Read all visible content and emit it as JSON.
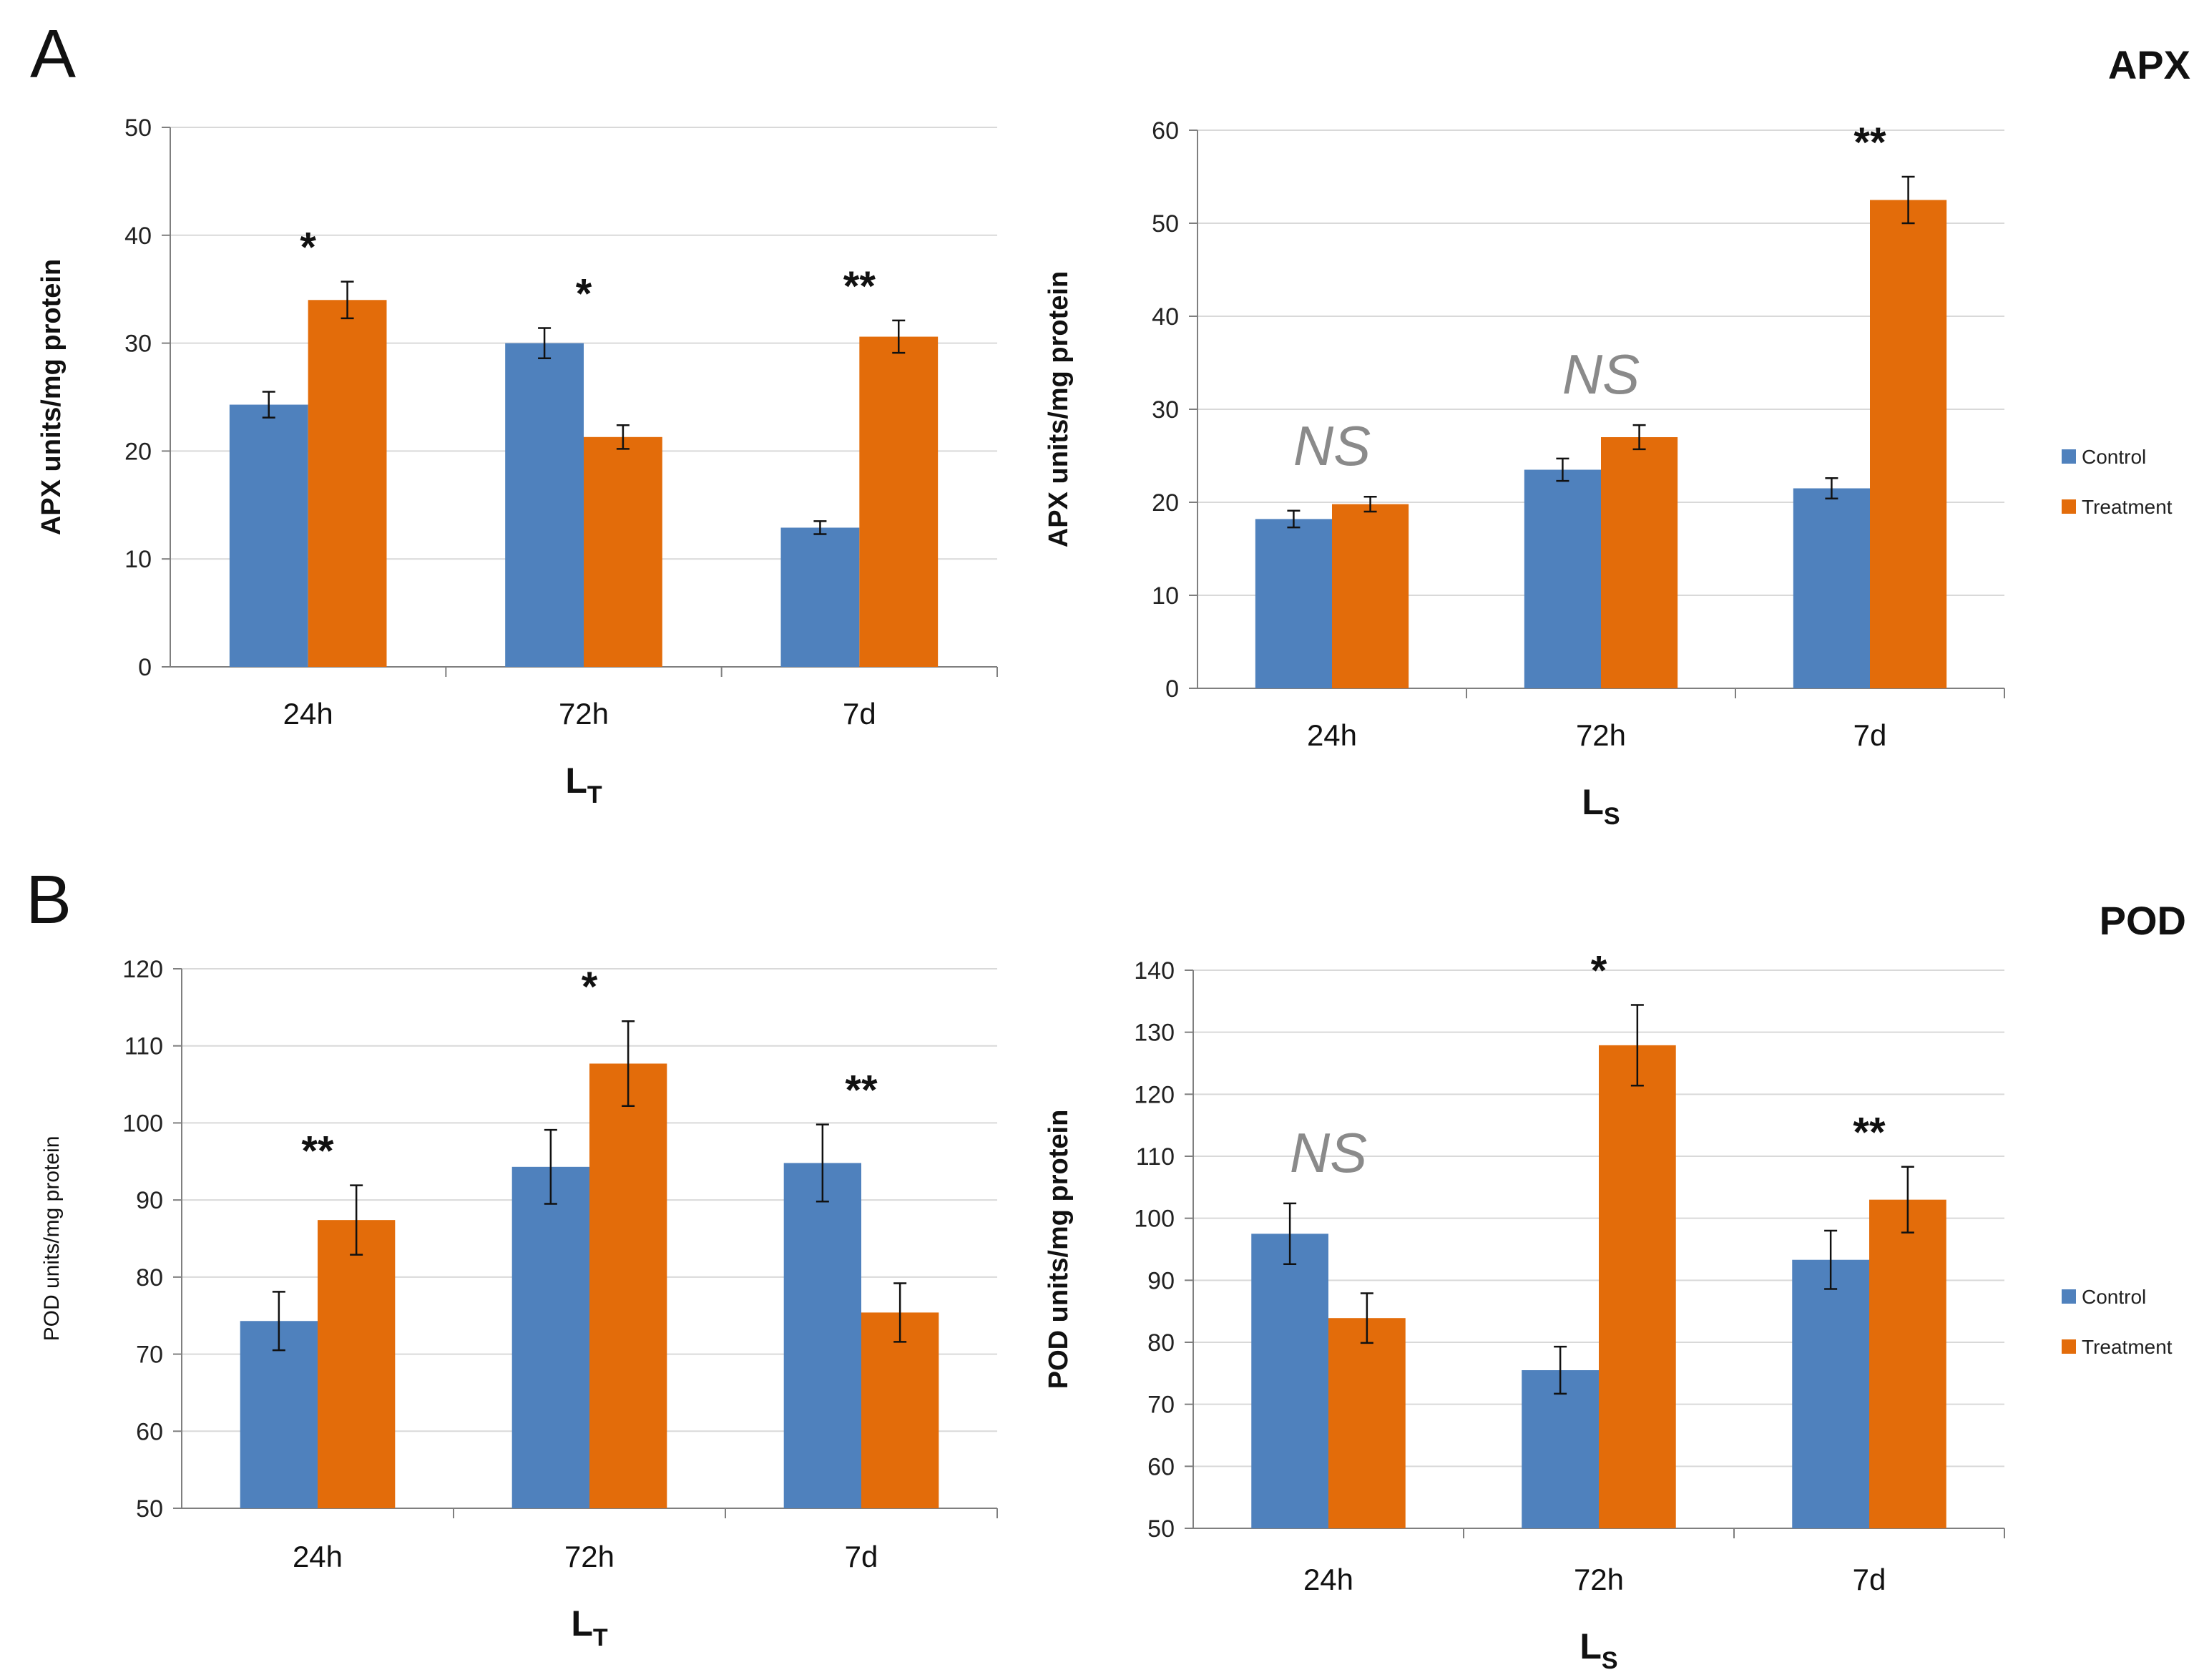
{
  "figure": {
    "panels": [
      {
        "letter": "A",
        "enzyme": "APX"
      },
      {
        "letter": "B",
        "enzyme": "POD"
      }
    ],
    "legend": [
      {
        "label": "Control",
        "color": "#4f81bd"
      },
      {
        "label": "Treatment",
        "color": "#e36c0a"
      }
    ]
  },
  "chart_data": [
    {
      "type": "bar",
      "title": "",
      "ylabel": "APX units/mg protein",
      "xlabel": "L",
      "xlabel_sub": "T",
      "ylim": [
        0,
        50
      ],
      "yticks": [
        0,
        10,
        20,
        30,
        40,
        50
      ],
      "grid": true,
      "categories": [
        "24h",
        "72h",
        "7d"
      ],
      "series": [
        {
          "name": "Control",
          "color": "#4f81bd",
          "values": [
            24.3,
            30.0,
            12.9
          ],
          "errors": [
            1.2,
            1.4,
            0.6
          ]
        },
        {
          "name": "Treatment",
          "color": "#e36c0a",
          "values": [
            34.0,
            21.3,
            30.6
          ],
          "errors": [
            1.7,
            1.1,
            1.5
          ]
        }
      ],
      "annotations": [
        "*",
        "*",
        "**"
      ]
    },
    {
      "type": "bar",
      "title": "",
      "ylabel": "APX units/mg protein",
      "xlabel": "L",
      "xlabel_sub": "S",
      "ylim": [
        0,
        60
      ],
      "yticks": [
        0,
        10,
        20,
        30,
        40,
        50,
        60
      ],
      "grid": true,
      "legend": "right",
      "categories": [
        "24h",
        "72h",
        "7d"
      ],
      "series": [
        {
          "name": "Control",
          "color": "#4f81bd",
          "values": [
            18.2,
            23.5,
            21.5
          ],
          "errors": [
            0.9,
            1.2,
            1.1
          ]
        },
        {
          "name": "Treatment",
          "color": "#e36c0a",
          "values": [
            19.8,
            27.0,
            52.5
          ],
          "errors": [
            0.8,
            1.3,
            2.5
          ]
        }
      ],
      "annotations": [
        "NS",
        "NS",
        "**"
      ]
    },
    {
      "type": "bar",
      "title": "",
      "ylabel": "POD units/mg protein",
      "xlabel": "L",
      "xlabel_sub": "T",
      "ylim": [
        50,
        120
      ],
      "yticks": [
        50,
        60,
        70,
        80,
        90,
        100,
        110,
        120
      ],
      "grid": true,
      "categories": [
        "24h",
        "72h",
        "7d"
      ],
      "series": [
        {
          "name": "Control",
          "color": "#4f81bd",
          "values": [
            74.3,
            94.3,
            94.8
          ],
          "errors": [
            3.8,
            4.8,
            5.0
          ]
        },
        {
          "name": "Treatment",
          "color": "#e36c0a",
          "values": [
            87.4,
            107.7,
            75.4
          ],
          "errors": [
            4.5,
            5.5,
            3.8
          ]
        }
      ],
      "annotations": [
        "**",
        "*",
        "**"
      ]
    },
    {
      "type": "bar",
      "title": "",
      "ylabel": "POD units/mg protein",
      "xlabel": "L",
      "xlabel_sub": "S",
      "ylim": [
        50,
        140
      ],
      "yticks": [
        50,
        60,
        70,
        80,
        90,
        100,
        110,
        120,
        130,
        140
      ],
      "grid": true,
      "legend": "right",
      "categories": [
        "24h",
        "72h",
        "7d"
      ],
      "series": [
        {
          "name": "Control",
          "color": "#4f81bd",
          "values": [
            97.5,
            75.5,
            93.3
          ],
          "errors": [
            4.9,
            3.8,
            4.7
          ]
        },
        {
          "name": "Treatment",
          "color": "#e36c0a",
          "values": [
            83.9,
            127.9,
            103.0
          ],
          "errors": [
            4.0,
            6.5,
            5.3
          ]
        }
      ],
      "annotations": [
        "NS",
        "*",
        "**"
      ]
    }
  ]
}
